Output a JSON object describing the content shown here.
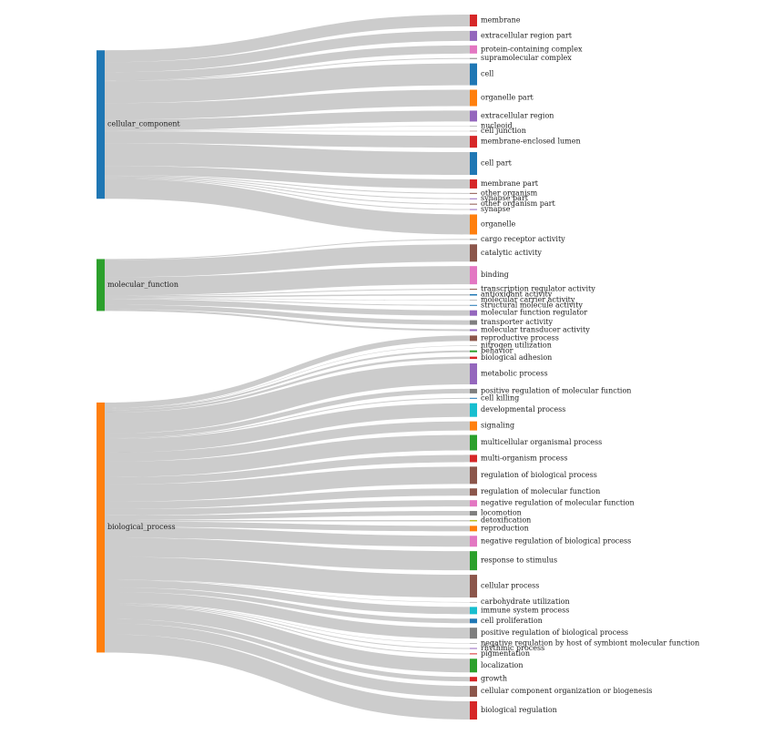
{
  "chart_data": {
    "type": "sankey",
    "link_color": "rgba(0,0,0,0.2)",
    "sources": [
      {
        "name": "cellular_component",
        "color": "#1f77b4",
        "targets": [
          {
            "name": "membrane",
            "color": "#d62728",
            "value": 13
          },
          {
            "name": "extracellular region part",
            "color": "#9467bd",
            "value": 11
          },
          {
            "name": "protein-containing complex",
            "color": "#e377c2",
            "value": 9
          },
          {
            "name": "supramolecular complex",
            "color": "#7f7f7f",
            "value": 1
          },
          {
            "name": "cell",
            "color": "#1f77b4",
            "value": 24
          },
          {
            "name": "organelle part",
            "color": "#ff7f0e",
            "value": 18
          },
          {
            "name": "extracellular region",
            "color": "#9467bd",
            "value": 12
          },
          {
            "name": "nucleoid",
            "color": "#7f7f7f",
            "value": 0.5
          },
          {
            "name": "cell junction",
            "color": "#8c564b",
            "value": 0.5
          },
          {
            "name": "membrane-enclosed lumen",
            "color": "#d62728",
            "value": 13
          },
          {
            "name": "cell part",
            "color": "#1f77b4",
            "value": 25
          },
          {
            "name": "membrane part",
            "color": "#d62728",
            "value": 10
          },
          {
            "name": "other organism",
            "color": "#8c564b",
            "value": 1
          },
          {
            "name": "synapse part",
            "color": "#9467bd",
            "value": 1
          },
          {
            "name": "other organism part",
            "color": "#8c564b",
            "value": 1
          },
          {
            "name": "synapse",
            "color": "#9467bd",
            "value": 1
          },
          {
            "name": "organelle",
            "color": "#ff7f0e",
            "value": 22
          }
        ]
      },
      {
        "name": "molecular_function",
        "color": "#2ca02c",
        "targets": [
          {
            "name": "cargo receptor activity",
            "color": "#7f7f7f",
            "value": 1
          },
          {
            "name": "catalytic activity",
            "color": "#8c564b",
            "value": 19
          },
          {
            "name": "binding",
            "color": "#e377c2",
            "value": 20
          },
          {
            "name": "transcription regulator activity",
            "color": "#8c564b",
            "value": 1
          },
          {
            "name": "antioxidant activity",
            "color": "#1f77b4",
            "value": 1.5
          },
          {
            "name": "molecular carrier activity",
            "color": "#7f7f7f",
            "value": 0.5
          },
          {
            "name": "structural molecule activity",
            "color": "#1f77b4",
            "value": 1
          },
          {
            "name": "molecular function regulator",
            "color": "#9467bd",
            "value": 6
          },
          {
            "name": "transporter activity",
            "color": "#7f7f7f",
            "value": 5
          },
          {
            "name": "molecular transducer activity",
            "color": "#9467bd",
            "value": 2
          }
        ]
      },
      {
        "name": "biological_process",
        "color": "#ff7f0e",
        "targets": [
          {
            "name": "reproductive process",
            "color": "#8c564b",
            "value": 6
          },
          {
            "name": "nitrogen utilization",
            "color": "#7f7f7f",
            "value": 0.5
          },
          {
            "name": "behavior",
            "color": "#2ca02c",
            "value": 2
          },
          {
            "name": "biological adhesion",
            "color": "#d62728",
            "value": 2.5
          },
          {
            "name": "metabolic process",
            "color": "#9467bd",
            "value": 23
          },
          {
            "name": "positive regulation of molecular function",
            "color": "#7f7f7f",
            "value": 5
          },
          {
            "name": "cell killing",
            "color": "#1f77b4",
            "value": 1
          },
          {
            "name": "developmental process",
            "color": "#17becf",
            "value": 15
          },
          {
            "name": "signaling",
            "color": "#ff7f0e",
            "value": 10
          },
          {
            "name": "multicellular organismal process",
            "color": "#2ca02c",
            "value": 17
          },
          {
            "name": "multi-organism process",
            "color": "#d62728",
            "value": 8
          },
          {
            "name": "regulation of biological process",
            "color": "#8c564b",
            "value": 19
          },
          {
            "name": "regulation of molecular function",
            "color": "#8c564b",
            "value": 8
          },
          {
            "name": "negative regulation of molecular function",
            "color": "#e377c2",
            "value": 7
          },
          {
            "name": "locomotion",
            "color": "#7f7f7f",
            "value": 5
          },
          {
            "name": "detoxification",
            "color": "#bcbd22",
            "value": 1.5
          },
          {
            "name": "reproduction",
            "color": "#ff7f0e",
            "value": 6
          },
          {
            "name": "negative regulation of biological process",
            "color": "#e377c2",
            "value": 12
          },
          {
            "name": "response to stimulus",
            "color": "#2ca02c",
            "value": 21
          },
          {
            "name": "cellular process",
            "color": "#8c564b",
            "value": 25
          },
          {
            "name": "carbohydrate utilization",
            "color": "#7f7f7f",
            "value": 0.5
          },
          {
            "name": "immune system process",
            "color": "#17becf",
            "value": 8
          },
          {
            "name": "cell proliferation",
            "color": "#1f77b4",
            "value": 5
          },
          {
            "name": "positive regulation of biological process",
            "color": "#7f7f7f",
            "value": 12
          },
          {
            "name": "negative regulation by host of symbiont molecular function",
            "color": "#7f7f7f",
            "value": 0.5
          },
          {
            "name": "rhythmic process",
            "color": "#9467bd",
            "value": 1
          },
          {
            "name": "pigmentation",
            "color": "#d62728",
            "value": 1
          },
          {
            "name": "localization",
            "color": "#2ca02c",
            "value": 15
          },
          {
            "name": "growth",
            "color": "#d62728",
            "value": 5
          },
          {
            "name": "cellular component organization or biogenesis",
            "color": "#8c564b",
            "value": 12
          },
          {
            "name": "biological regulation",
            "color": "#d62728",
            "value": 20
          }
        ]
      }
    ]
  }
}
